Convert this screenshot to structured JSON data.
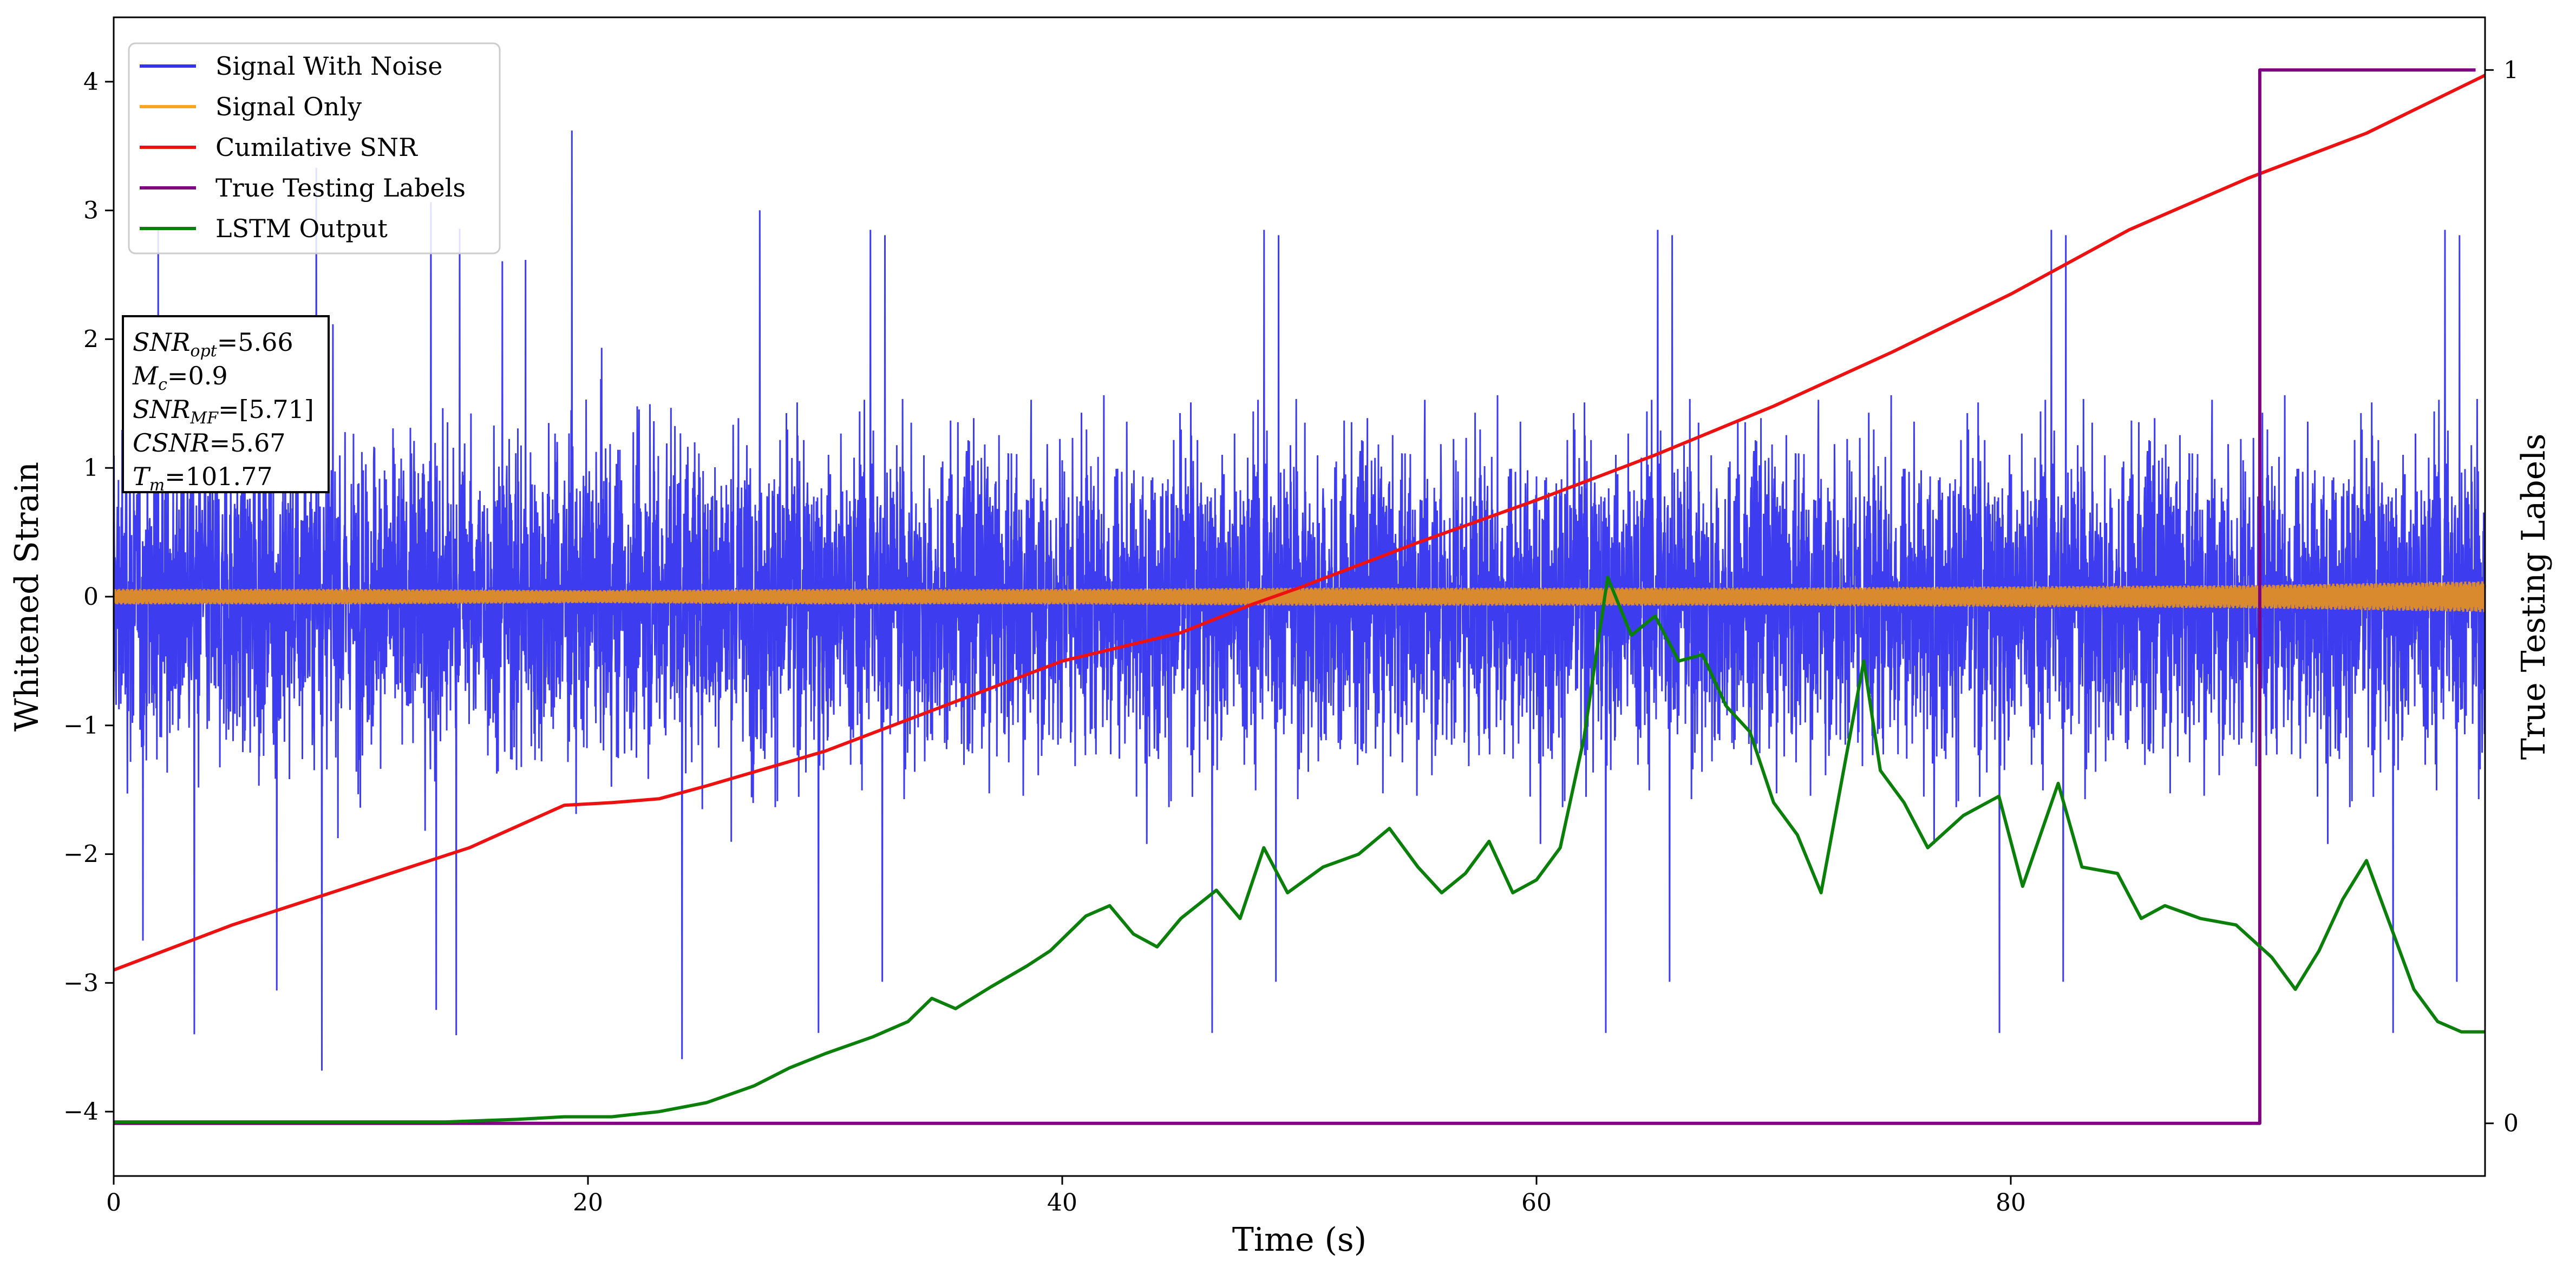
{
  "chart_data": {
    "type": "line",
    "xlabel": "Time (s)",
    "ylabel": "Whitened Strain",
    "y2label": "True Testing Labels",
    "xlim": [
      0,
      100
    ],
    "ylim": [
      -4.5,
      4.5
    ],
    "y2lim": [
      -0.05,
      1.05
    ],
    "xticks": [
      0,
      20,
      40,
      60,
      80
    ],
    "yticks": [
      -4,
      -3,
      -2,
      -1,
      0,
      1,
      2,
      3,
      4
    ],
    "y2ticks": [
      0,
      1
    ],
    "legend": {
      "placement": "top-left",
      "entries": [
        {
          "label": "Signal With Noise",
          "color": "#3333ee"
        },
        {
          "label": "Signal Only",
          "color": "#f5a623"
        },
        {
          "label": "Cumilative SNR",
          "color": "#ee1111"
        },
        {
          "label": "True Testing Labels",
          "color": "#800080"
        },
        {
          "label": "LSTM Output",
          "color": "#0a7f0a"
        }
      ]
    },
    "annotation": {
      "placement": "left",
      "lines": [
        {
          "base": "SNR",
          "sub": "opt",
          "rest": "=5.66"
        },
        {
          "base": "M",
          "sub": "c",
          "rest": "=0.9"
        },
        {
          "base": "SNR",
          "sub": "MF",
          "rest": "=[5.71]"
        },
        {
          "base": "CSNR",
          "sub": "",
          "rest": "=5.67"
        },
        {
          "base": "T",
          "sub": "m",
          "rest": "=101.77"
        }
      ]
    },
    "series": [
      {
        "name": "Signal With Noise",
        "color": "#3333ee",
        "description_values": {
          "typical_min": -2.0,
          "typical_max": 2.0,
          "peak_max": 3.75,
          "peak_min": -3.7
        }
      },
      {
        "name": "Signal Only",
        "color": "#f5a623",
        "envelope": {
          "x": [
            0,
            10,
            20,
            30,
            40,
            50,
            60,
            70,
            80,
            90,
            100
          ],
          "amplitude": [
            0.06,
            0.06,
            0.05,
            0.06,
            0.06,
            0.07,
            0.07,
            0.07,
            0.08,
            0.09,
            0.12
          ]
        }
      },
      {
        "name": "Cumilative SNR",
        "color": "#ee1111",
        "x": [
          0,
          5,
          10,
          15,
          19,
          21,
          23,
          25,
          30,
          35,
          40,
          45,
          48,
          50,
          55,
          60,
          65,
          70,
          75,
          80,
          85,
          90,
          95,
          100
        ],
        "y": [
          -2.9,
          -2.55,
          -2.25,
          -1.95,
          -1.62,
          -1.6,
          -1.57,
          -1.47,
          -1.2,
          -0.85,
          -0.5,
          -0.28,
          -0.06,
          0.07,
          0.42,
          0.75,
          1.1,
          1.48,
          1.9,
          2.35,
          2.85,
          3.25,
          3.6,
          4.05
        ]
      },
      {
        "name": "True Testing Labels",
        "color": "#800080",
        "axis": "right",
        "x": [
          0,
          90.5,
          90.5,
          99.6
        ],
        "y": [
          0,
          0,
          1,
          1
        ]
      },
      {
        "name": "LSTM Output",
        "color": "#0a7f0a",
        "x": [
          0,
          14,
          17,
          19,
          21,
          23,
          25,
          27,
          28.5,
          30,
          32,
          33.5,
          34.5,
          35.5,
          37,
          38.5,
          39.5,
          41,
          42,
          43,
          44,
          45,
          46.5,
          47.5,
          48.5,
          49.5,
          51,
          52.5,
          53.8,
          55,
          56,
          57,
          58,
          59,
          60,
          61,
          62,
          63,
          64,
          65,
          66,
          67,
          68,
          69,
          70,
          71,
          72,
          73,
          73.8,
          74.5,
          75.5,
          76.5,
          78,
          79.5,
          80.5,
          82,
          83,
          84.5,
          85.5,
          86.5,
          88,
          89.5,
          91,
          92,
          93,
          94,
          95,
          96,
          97,
          98,
          99,
          100
        ],
        "y": [
          -4.08,
          -4.08,
          -4.06,
          -4.04,
          -4.04,
          -4.0,
          -3.93,
          -3.8,
          -3.66,
          -3.55,
          -3.42,
          -3.3,
          -3.12,
          -3.2,
          -3.03,
          -2.87,
          -2.75,
          -2.48,
          -2.4,
          -2.62,
          -2.72,
          -2.5,
          -2.28,
          -2.5,
          -1.95,
          -2.3,
          -2.1,
          -2.0,
          -1.8,
          -2.1,
          -2.3,
          -2.15,
          -1.9,
          -2.3,
          -2.2,
          -1.95,
          -1.1,
          0.15,
          -0.3,
          -0.15,
          -0.5,
          -0.45,
          -0.85,
          -1.05,
          -1.6,
          -1.85,
          -2.3,
          -1.3,
          -0.5,
          -1.35,
          -1.6,
          -1.95,
          -1.7,
          -1.55,
          -2.25,
          -1.45,
          -2.1,
          -2.15,
          -2.5,
          -2.4,
          -2.5,
          -2.55,
          -2.8,
          -3.05,
          -2.75,
          -2.35,
          -2.05,
          -2.55,
          -3.05,
          -3.3,
          -3.38,
          -3.38
        ]
      }
    ]
  }
}
